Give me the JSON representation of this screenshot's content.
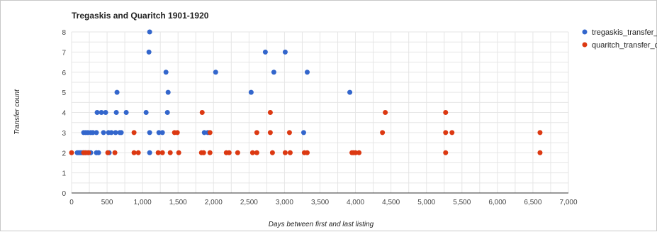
{
  "chart_data": {
    "type": "scatter",
    "title": "Tregaskis and Quaritch 1901-1920",
    "xlabel": "Days between first and last listing",
    "ylabel": "Transfer count",
    "xlim": [
      0,
      7000
    ],
    "ylim": [
      0,
      8
    ],
    "xticks": [
      0,
      500,
      1000,
      1500,
      2000,
      2500,
      3000,
      3500,
      4000,
      4500,
      5000,
      5500,
      6000,
      6500,
      7000
    ],
    "xtick_labels": [
      "0",
      "500",
      "1,000",
      "1,500",
      "2,000",
      "2,500",
      "3,000",
      "3,500",
      "4,000",
      "4,500",
      "5,000",
      "5,500",
      "6,000",
      "6,500",
      "7,000"
    ],
    "yticks": [
      0,
      1,
      2,
      3,
      4,
      5,
      6,
      7,
      8
    ],
    "ytick_labels": [
      "0",
      "1",
      "2",
      "3",
      "4",
      "5",
      "6",
      "7",
      "8"
    ],
    "grid": true,
    "legend_position": "right",
    "series": [
      {
        "name": "tregaskis_transfer_...",
        "color": "#3366cc",
        "points": [
          [
            80,
            2
          ],
          [
            100,
            2
          ],
          [
            120,
            2
          ],
          [
            140,
            2
          ],
          [
            160,
            2
          ],
          [
            180,
            2
          ],
          [
            200,
            2
          ],
          [
            230,
            2
          ],
          [
            270,
            2
          ],
          [
            350,
            2
          ],
          [
            380,
            2
          ],
          [
            530,
            2
          ],
          [
            1100,
            2
          ],
          [
            170,
            3
          ],
          [
            200,
            3
          ],
          [
            230,
            3
          ],
          [
            270,
            3
          ],
          [
            300,
            3
          ],
          [
            350,
            3
          ],
          [
            450,
            3
          ],
          [
            520,
            3
          ],
          [
            560,
            3
          ],
          [
            620,
            3
          ],
          [
            680,
            3
          ],
          [
            700,
            3
          ],
          [
            1100,
            3
          ],
          [
            1230,
            3
          ],
          [
            1280,
            3
          ],
          [
            1870,
            3
          ],
          [
            1920,
            3
          ],
          [
            3270,
            3
          ],
          [
            360,
            4
          ],
          [
            420,
            4
          ],
          [
            480,
            4
          ],
          [
            630,
            4
          ],
          [
            770,
            4
          ],
          [
            1050,
            4
          ],
          [
            1350,
            4
          ],
          [
            640,
            5
          ],
          [
            1360,
            5
          ],
          [
            2530,
            5
          ],
          [
            3920,
            5
          ],
          [
            1330,
            6
          ],
          [
            2030,
            6
          ],
          [
            2850,
            6
          ],
          [
            3320,
            6
          ],
          [
            1090,
            7
          ],
          [
            2730,
            7
          ],
          [
            3010,
            7
          ],
          [
            1100,
            8
          ]
        ]
      },
      {
        "name": "quaritch_transfer_c...",
        "color": "#dc3912",
        "points": [
          [
            0,
            2
          ],
          [
            170,
            2
          ],
          [
            200,
            2
          ],
          [
            240,
            2
          ],
          [
            510,
            2
          ],
          [
            610,
            2
          ],
          [
            880,
            2
          ],
          [
            940,
            2
          ],
          [
            1220,
            2
          ],
          [
            1280,
            2
          ],
          [
            1390,
            2
          ],
          [
            1510,
            2
          ],
          [
            1830,
            2
          ],
          [
            1860,
            2
          ],
          [
            1950,
            2
          ],
          [
            2180,
            2
          ],
          [
            2220,
            2
          ],
          [
            2340,
            2
          ],
          [
            2550,
            2
          ],
          [
            2610,
            2
          ],
          [
            2830,
            2
          ],
          [
            3010,
            2
          ],
          [
            3080,
            2
          ],
          [
            3280,
            2
          ],
          [
            3320,
            2
          ],
          [
            3950,
            2
          ],
          [
            3970,
            2
          ],
          [
            4000,
            2
          ],
          [
            4050,
            2
          ],
          [
            5270,
            2
          ],
          [
            6600,
            2
          ],
          [
            880,
            3
          ],
          [
            1450,
            3
          ],
          [
            1490,
            3
          ],
          [
            1950,
            3
          ],
          [
            2610,
            3
          ],
          [
            2800,
            3
          ],
          [
            3070,
            3
          ],
          [
            4380,
            3
          ],
          [
            5270,
            3
          ],
          [
            5360,
            3
          ],
          [
            6600,
            3
          ],
          [
            1840,
            4
          ],
          [
            2800,
            4
          ],
          [
            4420,
            4
          ],
          [
            5270,
            4
          ]
        ]
      }
    ]
  }
}
